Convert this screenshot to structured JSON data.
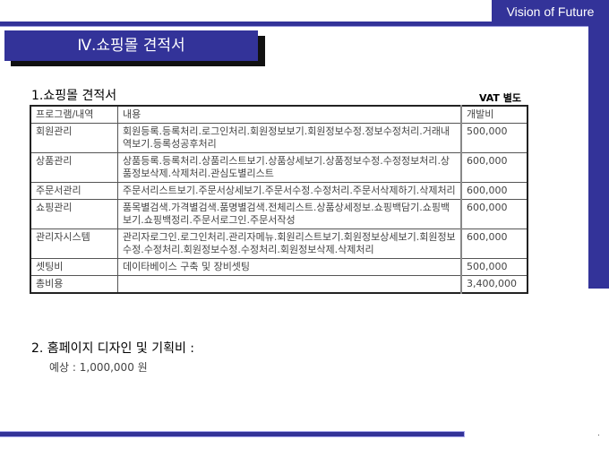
{
  "header": {
    "tagline": "Vision of Future"
  },
  "title": "Ⅳ.쇼핑몰 견적서",
  "section1": {
    "heading": "1.쇼핑몰 견적서",
    "note": "VAT 별도"
  },
  "table": {
    "headers": [
      "프로그램/내역",
      "내용",
      "개발비"
    ],
    "rows": [
      [
        "회원관리",
        "회원등록.등록처리.로그인처리.회원정보보기.회원정보수정.정보수정처리.거래내역보기.등록성공후처리",
        "500,000"
      ],
      [
        "상품관리",
        "상품등록.등록처리.상품리스트보기.상품상세보기.상품정보수정.수정정보처리.상품정보삭제.삭제처리.관심도별리스트",
        "600,000"
      ],
      [
        "주문서관리",
        "주문서리스트보기.주문서상세보기.주문서수정.수정처리.주문서삭제하기.삭제처리",
        "600,000"
      ],
      [
        "쇼핑관리",
        "품목별검색.가격별검색.품명별검색.전체리스트.상품상세정보.쇼핑백담기.쇼핑백보기.쇼핑백정리.주문서로그인.주문서작성",
        "600,000"
      ],
      [
        "관리자시스템",
        "관리자로그인.로그인처리.관리자메뉴.회원리스트보기.회원정보상세보기.회원정보수정.수정처리.회원정보수정.수정처리.회원정보삭제.삭제처리",
        "600,000"
      ],
      [
        "셋팅비",
        "데이타베이스 구축 및 장비셋팅",
        "500,000"
      ],
      [
        "총비용",
        "",
        "3,400,000"
      ]
    ]
  },
  "section2": {
    "heading": "2. 홈페이지 디자인 및 기획비 :",
    "estimate": "예상 : 1,000,000 원"
  },
  "colors": {
    "brand": "#333399"
  }
}
